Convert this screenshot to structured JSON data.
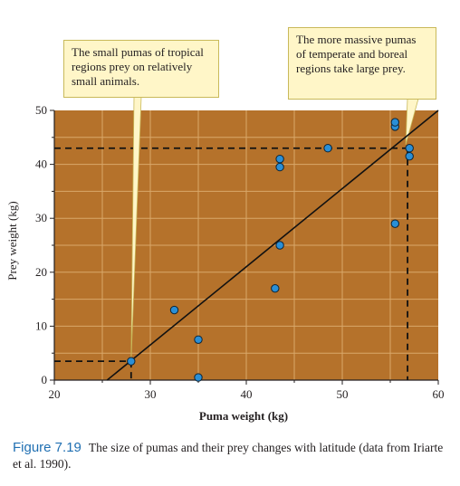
{
  "chart_data": {
    "type": "scatter",
    "xlabel": "Puma weight (kg)",
    "ylabel": "Prey weight (kg)",
    "xlim": [
      20,
      60
    ],
    "ylim": [
      0,
      50
    ],
    "xticks": [
      20,
      30,
      40,
      50,
      60
    ],
    "yticks": [
      0,
      10,
      20,
      30,
      40,
      50
    ],
    "grid": true,
    "points": [
      {
        "x": 28.0,
        "y": 3.5
      },
      {
        "x": 32.5,
        "y": 13.0
      },
      {
        "x": 35.0,
        "y": 7.5
      },
      {
        "x": 35.0,
        "y": 0.5
      },
      {
        "x": 43.0,
        "y": 17.0
      },
      {
        "x": 43.5,
        "y": 25.0
      },
      {
        "x": 43.5,
        "y": 41.0
      },
      {
        "x": 43.5,
        "y": 39.5
      },
      {
        "x": 48.5,
        "y": 43.0
      },
      {
        "x": 55.5,
        "y": 47.0
      },
      {
        "x": 55.5,
        "y": 47.8
      },
      {
        "x": 55.5,
        "y": 29.0
      },
      {
        "x": 57.0,
        "y": 43.0
      },
      {
        "x": 57.0,
        "y": 41.5
      }
    ],
    "regression_line": {
      "x": [
        25.5,
        60.0
      ],
      "y": [
        0.0,
        50.0
      ]
    },
    "reference_lines": [
      {
        "x": 28.0,
        "y": 3.5
      },
      {
        "x": 56.8,
        "y": 43.0
      }
    ]
  },
  "callouts": {
    "left": "The small pumas of tropical regions prey on relatively small animals.",
    "right": "The more massive pumas of temperate and boreal regions take large prey."
  },
  "caption": {
    "figure_label": "Figure 7.19",
    "text": "The size of pumas and their prey changes with latitude (data from Iriarte et al. 1990)."
  },
  "colors": {
    "plot_background": "#b5722b",
    "grid": "#d9a86a",
    "point_fill": "#2a8fd6",
    "callout_background": "#fff6c8",
    "caption_label": "#1f6fb2"
  }
}
